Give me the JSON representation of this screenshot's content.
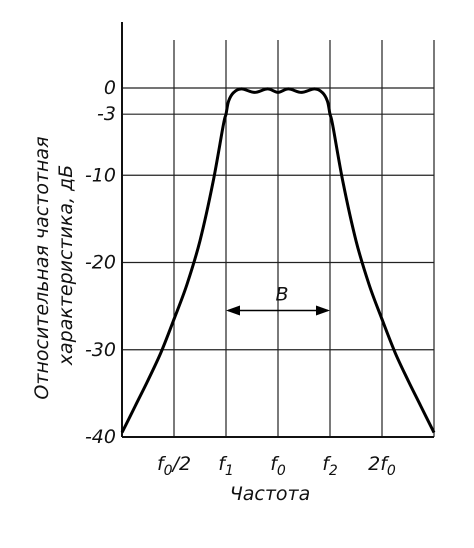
{
  "chart_data": {
    "type": "line",
    "title": "",
    "xlabel": "Частота",
    "ylabel": "Относительная частотная характеристика, дБ",
    "ylabel_lines": [
      "Относительная частотная",
      "характеристика, дБ"
    ],
    "ylim": [
      -40,
      0
    ],
    "y_ticks": [
      {
        "value": 0,
        "label": "0"
      },
      {
        "value": -3,
        "label": "-3"
      },
      {
        "value": -10,
        "label": "-10"
      },
      {
        "value": -20,
        "label": "-20"
      },
      {
        "value": -30,
        "label": "-30"
      },
      {
        "value": -40,
        "label": "-40"
      }
    ],
    "xlim": [
      0,
      6
    ],
    "x_ticks": [
      {
        "value": 1,
        "label": "f0/2",
        "base": "f",
        "sub": "0",
        "suffix": "/2"
      },
      {
        "value": 2,
        "label": "f1",
        "base": "f",
        "sub": "1",
        "suffix": ""
      },
      {
        "value": 3,
        "label": "f0",
        "base": "f",
        "sub": "0",
        "suffix": ""
      },
      {
        "value": 4,
        "label": "f2",
        "base": "f",
        "sub": "2",
        "suffix": ""
      },
      {
        "value": 5,
        "label": "2f0",
        "base": "2f",
        "sub": "0",
        "suffix": ""
      }
    ],
    "grid": true,
    "series": [
      {
        "points": [
          [
            0.0,
            -39.5
          ],
          [
            0.25,
            -36.5
          ],
          [
            0.5,
            -33.5
          ],
          [
            0.75,
            -30.3
          ],
          [
            1.0,
            -26.5
          ],
          [
            1.25,
            -22.5
          ],
          [
            1.5,
            -17.5
          ],
          [
            1.75,
            -10.8
          ],
          [
            1.95,
            -4.2
          ],
          [
            2.0,
            -3.0
          ],
          [
            2.05,
            -1.5
          ],
          [
            2.15,
            -0.5
          ],
          [
            2.3,
            -0.1
          ],
          [
            2.55,
            -0.5
          ],
          [
            2.8,
            -0.1
          ],
          [
            3.0,
            -0.5
          ],
          [
            3.2,
            -0.1
          ],
          [
            3.45,
            -0.5
          ],
          [
            3.7,
            -0.1
          ],
          [
            3.85,
            -0.5
          ],
          [
            3.95,
            -1.5
          ],
          [
            4.0,
            -3.0
          ],
          [
            4.05,
            -4.2
          ],
          [
            4.25,
            -10.8
          ],
          [
            4.5,
            -17.5
          ],
          [
            4.75,
            -22.5
          ],
          [
            5.0,
            -26.5
          ],
          [
            5.25,
            -30.3
          ],
          [
            5.5,
            -33.5
          ],
          [
            5.75,
            -36.5
          ],
          [
            6.0,
            -39.5
          ]
        ]
      }
    ],
    "annotations": [
      {
        "text": "B",
        "type": "double-arrow",
        "from_x": 2,
        "to_x": 4,
        "y": -25.5
      }
    ]
  }
}
